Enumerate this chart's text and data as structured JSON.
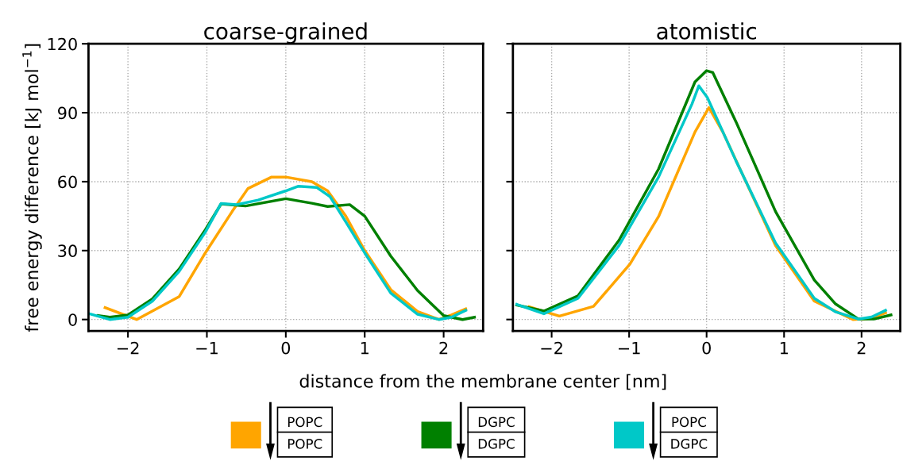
{
  "chart_data": [
    {
      "type": "line",
      "title": "coarse-grained",
      "ylabel": "free energy difference [kJ mol$^{−1}$]",
      "xlabel": "distance from the membrane center [nm]",
      "xlim": [
        -2.5,
        2.5
      ],
      "ylim": [
        -5,
        120
      ],
      "xticks": [
        -2,
        -1,
        0,
        1,
        2
      ],
      "yticks": [
        0,
        30,
        60,
        90,
        120
      ],
      "grid": true,
      "legend": "bottom",
      "line_style": "solid",
      "series": [
        {
          "name": "POPC\nPOPC",
          "color": "#ffa500",
          "x": [
            -2.29,
            -1.89,
            -1.35,
            -1.02,
            -0.68,
            -0.48,
            -0.18,
            0,
            0.33,
            0.53,
            0.76,
            1.0,
            1.33,
            1.67,
            1.94,
            2.1,
            2.28
          ],
          "values": [
            5.2,
            0,
            10,
            29,
            47,
            57,
            62,
            62,
            60,
            56,
            45,
            30,
            13,
            3.5,
            0,
            2,
            4.6
          ]
        },
        {
          "name": "DGPC\nDGPC",
          "color": "#008000",
          "x": [
            -2.38,
            -2.23,
            -2.0,
            -1.69,
            -1.35,
            -1.02,
            -0.82,
            -0.51,
            0,
            0.33,
            0.53,
            0.81,
            1.0,
            1.33,
            1.67,
            2.0,
            2.24,
            2.39
          ],
          "values": [
            1.7,
            1,
            2,
            9,
            22,
            39,
            50.3,
            49.4,
            52.6,
            50.6,
            49.2,
            50,
            45,
            27.6,
            12.6,
            1.7,
            0,
            1
          ]
        },
        {
          "name": "POPC\nDGPC",
          "color": "#00c8c8",
          "x": [
            -2.49,
            -2.23,
            -2.0,
            -1.69,
            -1.35,
            -1.02,
            -0.82,
            -0.62,
            -0.35,
            0,
            0.16,
            0.39,
            0.56,
            0.76,
            1.0,
            1.33,
            1.67,
            1.94,
            2.1,
            2.28
          ],
          "values": [
            2.5,
            0,
            1,
            8,
            21,
            38,
            50.5,
            50,
            52,
            56,
            58,
            57.5,
            53.5,
            42.5,
            29,
            11.5,
            2.3,
            0,
            1,
            4
          ]
        }
      ]
    },
    {
      "type": "line",
      "title": "atomistic",
      "xlim": [
        -2.5,
        2.5
      ],
      "ylim": [
        -5,
        120
      ],
      "xticks": [
        -2,
        -1,
        0,
        1,
        2
      ],
      "yticks": [
        0,
        30,
        60,
        90,
        120
      ],
      "tick_labels": "x",
      "grid": true,
      "line_style": "solid",
      "series": [
        {
          "color": "#ffa500",
          "x": [
            -2.29,
            -1.9,
            -1.46,
            -0.99,
            -0.62,
            -0.15,
            0.03,
            0.21,
            0.89,
            1.39,
            1.89,
            2.13,
            2.31
          ],
          "values": [
            5.5,
            1.5,
            5.7,
            24.1,
            44.8,
            81.6,
            92.2,
            81.6,
            32.2,
            8,
            0,
            0.6,
            2.9
          ]
        },
        {
          "color": "#008000",
          "x": [
            -2.45,
            -2.1,
            -1.66,
            -1.13,
            -0.62,
            -0.15,
            0,
            0.08,
            0.38,
            0.89,
            1.39,
            1.66,
            1.96,
            2.16,
            2.38
          ],
          "values": [
            6.3,
            3.7,
            10.3,
            34.5,
            65.5,
            103.4,
            108.3,
            107.5,
            86,
            47,
            17.2,
            6.9,
            0.2,
            0.2,
            2
          ]
        },
        {
          "color": "#00c8c8",
          "x": [
            -2.45,
            -2.1,
            -1.66,
            -1.13,
            -0.62,
            -0.19,
            -0.1,
            0.01,
            0.38,
            0.89,
            1.39,
            1.66,
            1.96,
            2.13,
            2.31
          ],
          "values": [
            6.6,
            2.5,
            9.2,
            32.2,
            62,
            93.7,
            101.7,
            96.6,
            69,
            33.3,
            9.2,
            3.4,
            0.2,
            1.1,
            4
          ]
        }
      ]
    }
  ]
}
